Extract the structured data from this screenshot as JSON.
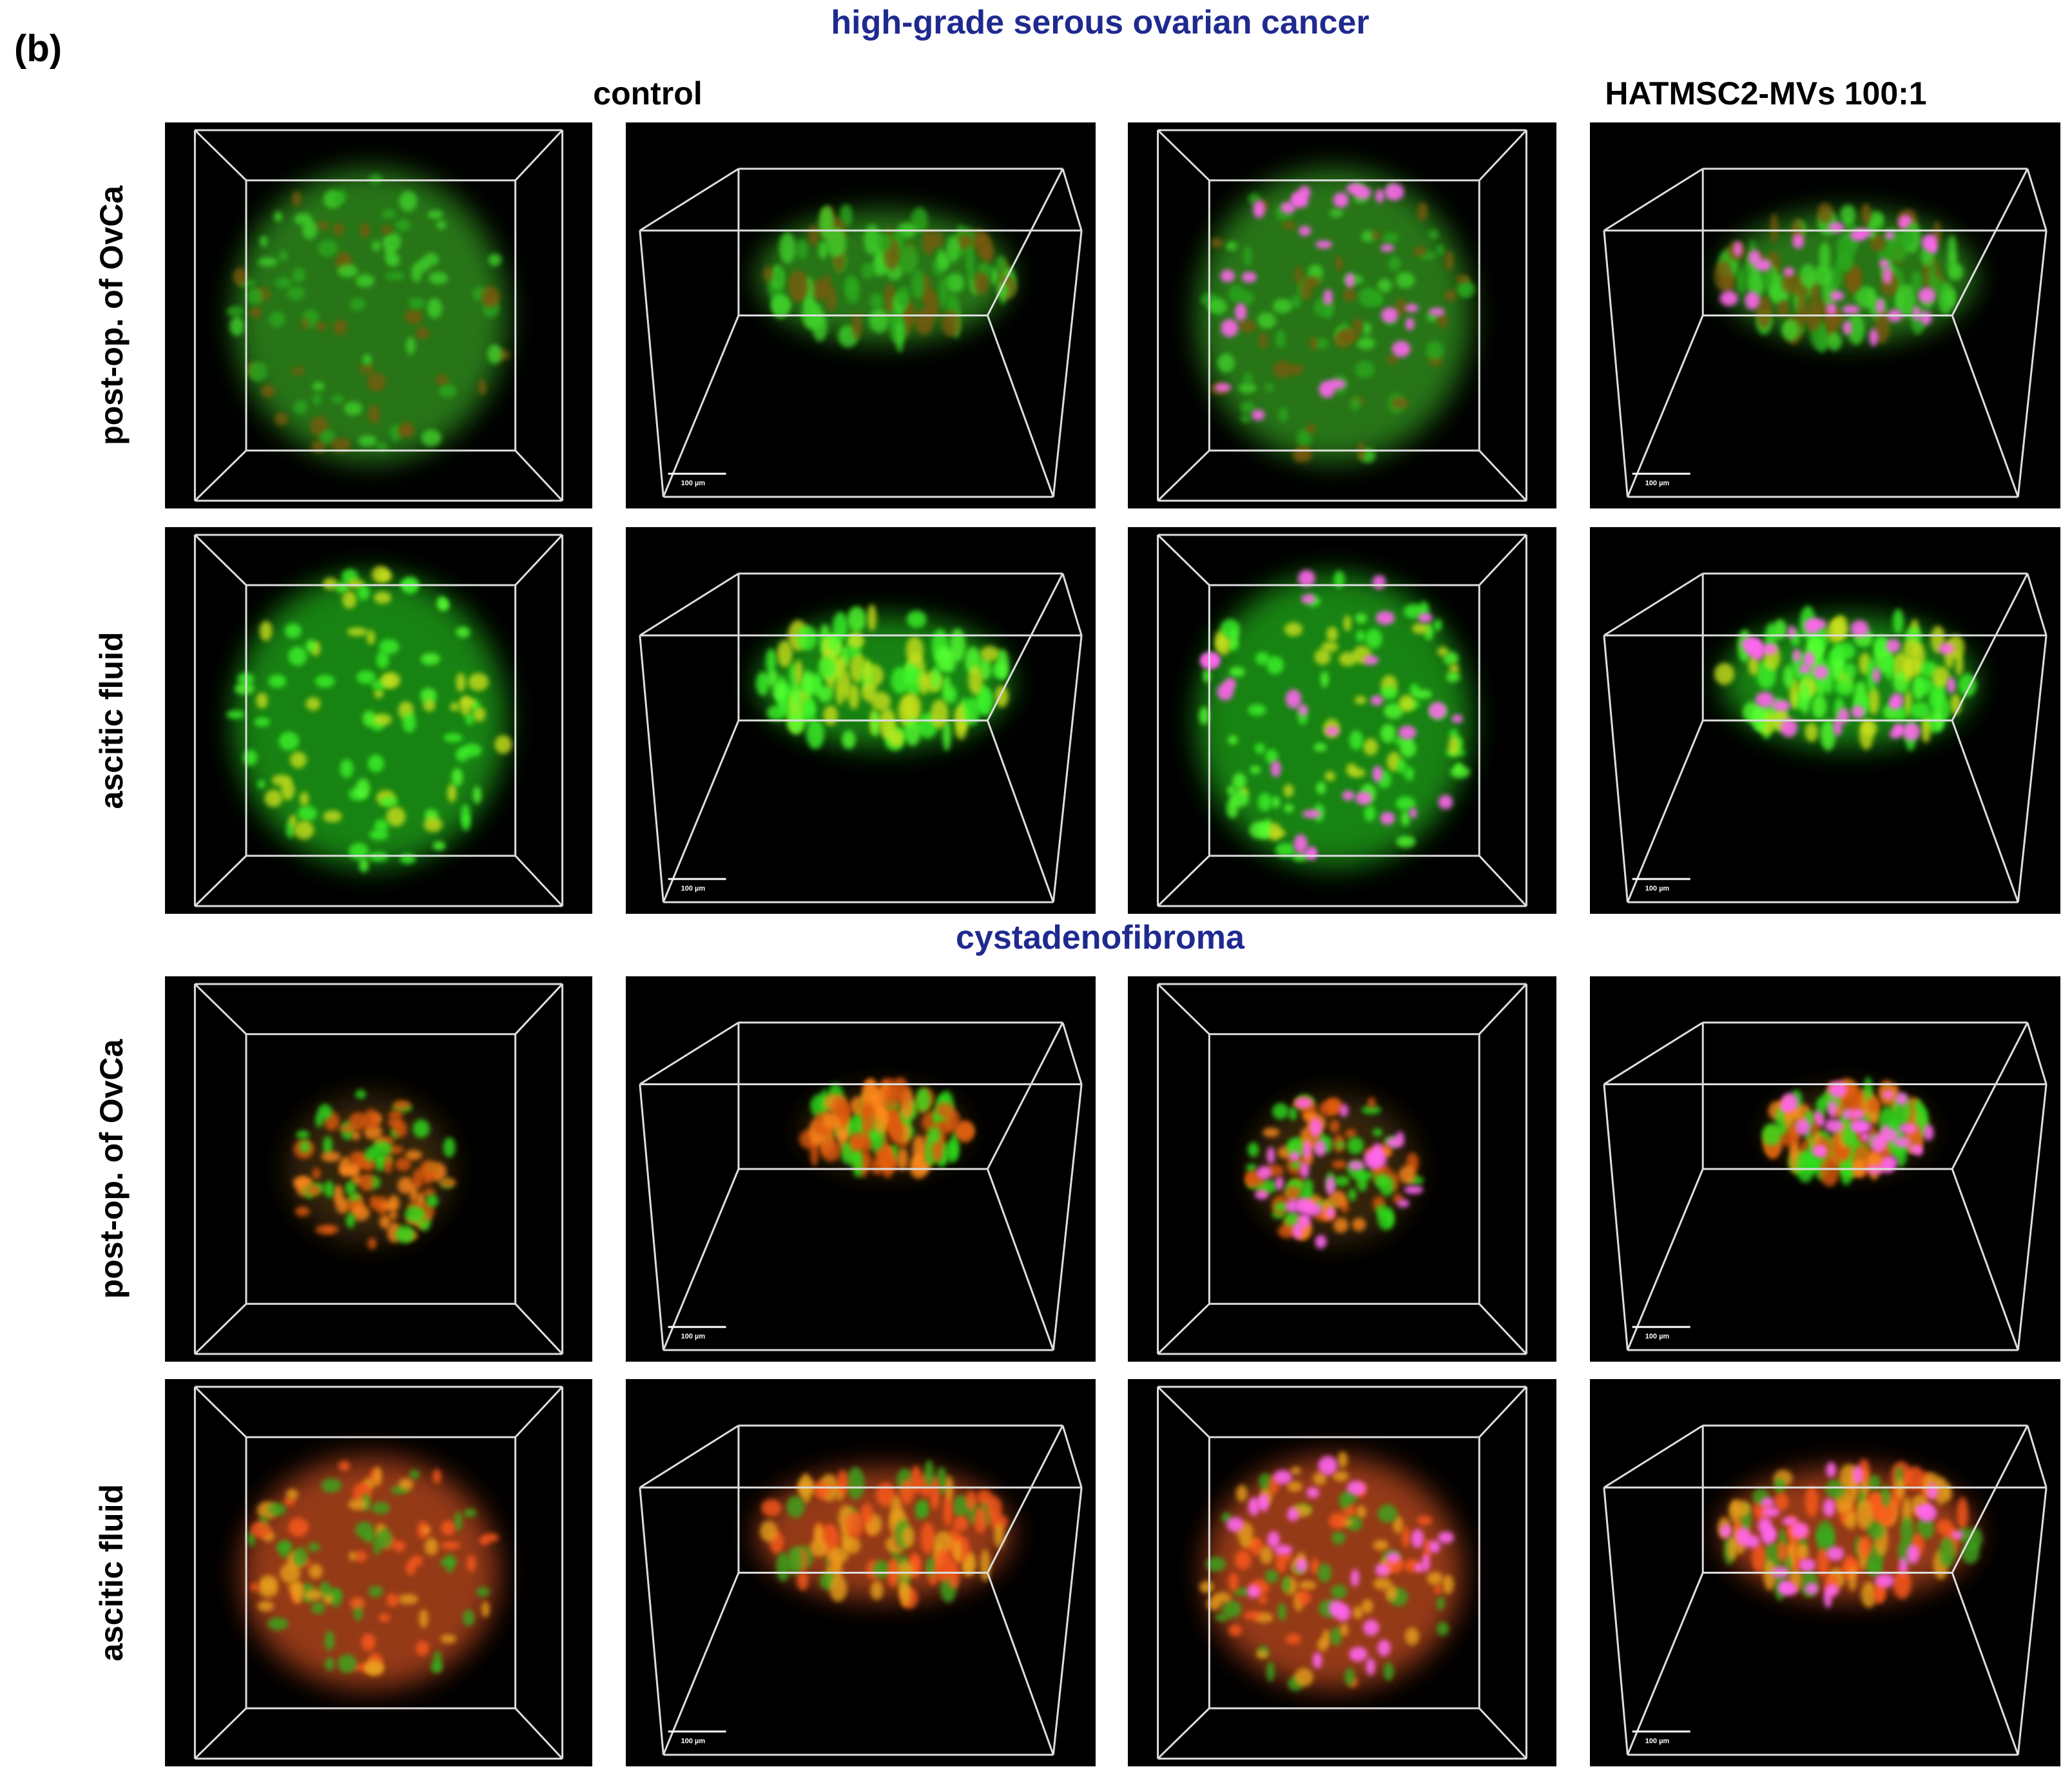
{
  "panel_label": "(b)",
  "columns": [
    "control",
    "HATMSC2-MVs 100:1"
  ],
  "sections": [
    {
      "title": "high-grade serous ovarian cancer",
      "rows": [
        "post-op. of OvCa",
        "ascitic fluid"
      ]
    },
    {
      "title": "cystadenofibroma",
      "rows": [
        "post-op. of OvCa",
        "ascitic fluid"
      ]
    }
  ],
  "scale_bar": "100 µm"
}
